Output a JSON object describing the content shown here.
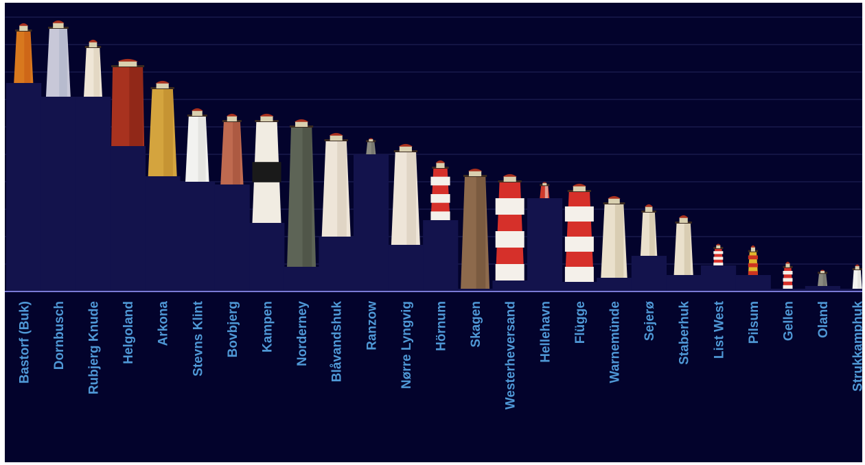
{
  "chart_data": {
    "type": "bar",
    "title": "",
    "xlabel": "",
    "ylabel": "",
    "ylim": [
      0,
      10
    ],
    "grid": true,
    "categories": [
      "Bastorf (Buk)",
      "Dornbusch",
      "Rubjerg Knude",
      "Helgoland",
      "Arkona",
      "Stevns Klint",
      "Bovbjerg",
      "Kampen",
      "Norderney",
      "Blåvandshuk",
      "Ranzow",
      "Nørre Lyngvig",
      "Hörnum",
      "Skagen",
      "Westerheversand",
      "Hellehavn",
      "Flügge",
      "Warnemünde",
      "Sejerø",
      "Staberhuk",
      "List West",
      "Pilsum",
      "Gellen",
      "Oland",
      "Strukkamphuk"
    ],
    "series": [
      {
        "values": [
          7.6,
          7.1,
          7.1,
          5.3,
          4.2,
          4.0,
          3.9,
          2.5,
          0.9,
          2.0,
          5.0,
          1.7,
          2.6,
          0.1,
          0.4,
          3.4,
          0.35,
          0.5,
          1.3,
          0.6,
          0.95,
          0.6,
          0.1,
          0.2,
          0.1
        ]
      },
      {
        "values": [
          2.2,
          2.8,
          2.1,
          3.2,
          3.5,
          2.7,
          2.6,
          4.0,
          5.4,
          3.8,
          0.6,
          3.7,
          2.2,
          4.4,
          3.9,
          0.6,
          3.6,
          3.0,
          1.9,
          2.2,
          0.8,
          1.1,
          1.0,
          0.6,
          0.9
        ]
      }
    ],
    "colors": {
      "background": "#03032c",
      "terrain": "#13134c",
      "gridline": "#23245c",
      "baseline": "#7a7ad6",
      "label": "#4f98d6"
    },
    "tower_styles": [
      "orange-red-lantern",
      "grey-white",
      "white-brick",
      "red-square",
      "yellow-brick",
      "white",
      "red-brick",
      "white-black-band",
      "grey-stone",
      "white-tall",
      "small-grey",
      "white-tall",
      "red-white-stripes",
      "brown-brick",
      "red-white-stripes",
      "small-red",
      "red-white-stripes",
      "white-light",
      "white-light",
      "white-light",
      "red-white-stripes",
      "yellow-red-stripes",
      "red-white-stripes",
      "small-grey",
      "white"
    ]
  }
}
